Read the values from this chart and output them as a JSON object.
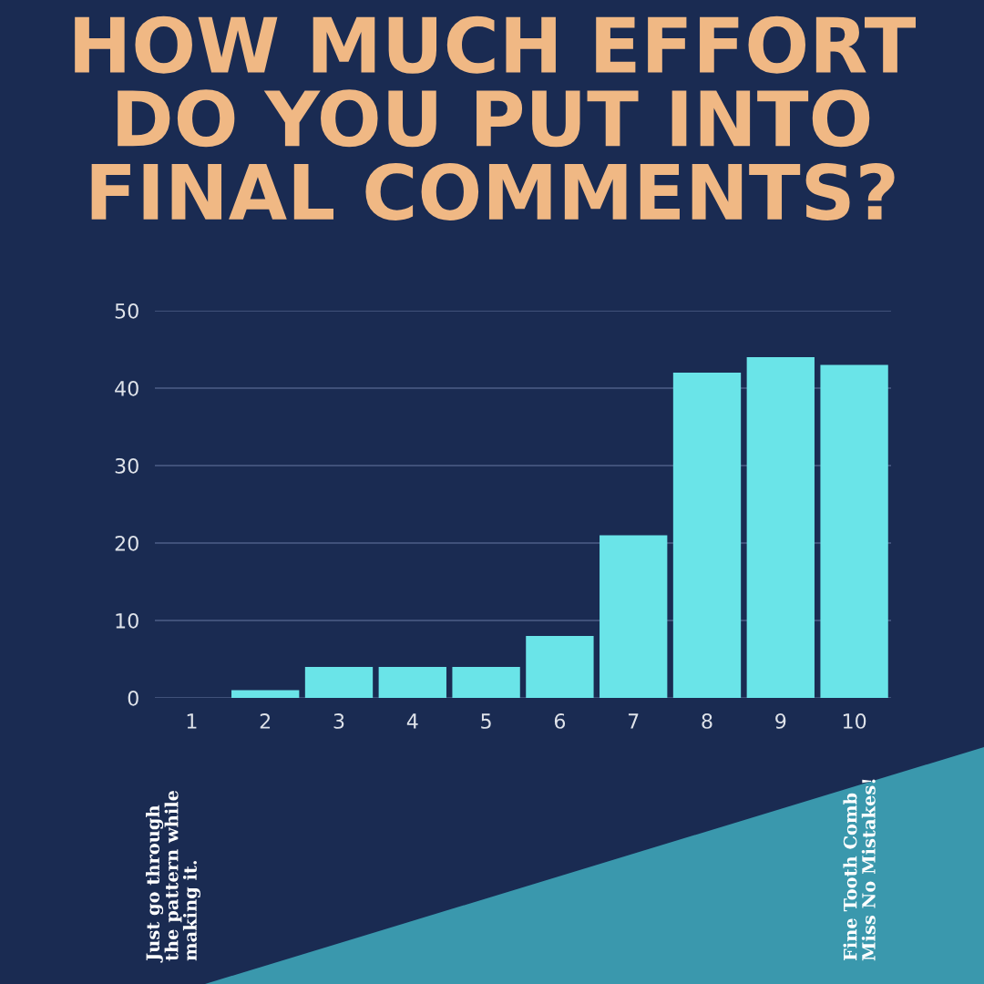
{
  "chart_data": {
    "type": "bar",
    "title": "HOW MUCH EFFORT\nDO YOU PUT INTO\nFINAL COMMENTS?",
    "categories": [
      "1",
      "2",
      "3",
      "4",
      "5",
      "6",
      "7",
      "8",
      "9",
      "10"
    ],
    "values": [
      0,
      1,
      4,
      4,
      4,
      8,
      21,
      42,
      44,
      43
    ],
    "color": "#6ae4e8",
    "ylim": [
      0,
      50
    ],
    "yticks": [
      0,
      10,
      20,
      30,
      40,
      50
    ],
    "grid": "y",
    "annotations": [
      "Just go through\nthe pattern while\nmaking it.",
      "Fine Tooth Comb\nMiss No Mistakes!"
    ]
  }
}
